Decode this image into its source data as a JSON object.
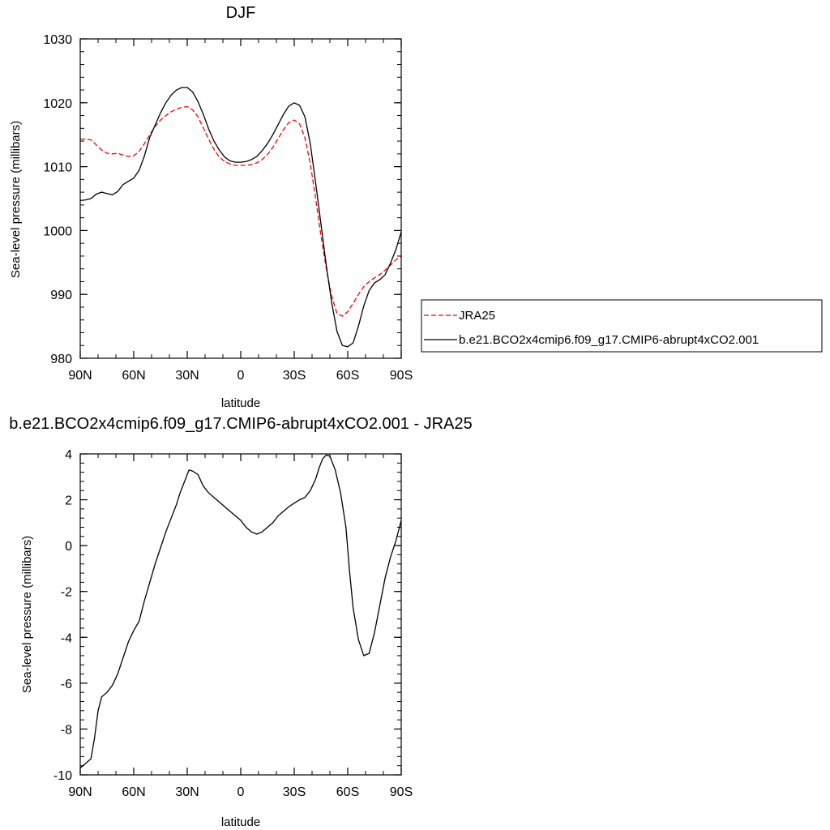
{
  "chart_data": [
    {
      "type": "line",
      "title": "DJF",
      "xlabel": "latitude",
      "ylabel": "Sea-level pressure (millibars)",
      "xlim": [
        90,
        -90
      ],
      "ylim": [
        980,
        1030
      ],
      "xticks": [
        90,
        60,
        30,
        0,
        -30,
        -60,
        -90
      ],
      "xtick_labels": [
        "90N",
        "60N",
        "30N",
        "0",
        "30S",
        "60S",
        "90S"
      ],
      "yticks": [
        980,
        990,
        1000,
        1010,
        1020,
        1030
      ],
      "ytick_labels": [
        "980",
        "990",
        "1000",
        "1010",
        "1020",
        "1030"
      ],
      "legend_position": "right",
      "series": [
        {
          "name": "JRA25",
          "color": "#ff0000",
          "dash": "dashed",
          "x": [
            90,
            87,
            84,
            81,
            78,
            75,
            72,
            69,
            66,
            63,
            60,
            57,
            54,
            51,
            48,
            45,
            42,
            39,
            36,
            33,
            30,
            27,
            24,
            21,
            18,
            15,
            12,
            9,
            6,
            3,
            0,
            -3,
            -6,
            -9,
            -12,
            -15,
            -18,
            -21,
            -24,
            -27,
            -30,
            -33,
            -36,
            -39,
            -42,
            -45,
            -48,
            -51,
            -54,
            -57,
            -60,
            -63,
            -66,
            -69,
            -72,
            -75,
            -78,
            -81,
            -84,
            -87,
            -90
          ],
          "y": [
            1014.3,
            1014.3,
            1014.2,
            1013.4,
            1012.6,
            1012.1,
            1012.0,
            1012.1,
            1011.8,
            1011.6,
            1011.7,
            1012.4,
            1013.6,
            1015.0,
            1016.3,
            1017.3,
            1018.0,
            1018.6,
            1019.0,
            1019.3,
            1019.4,
            1018.9,
            1017.8,
            1016.1,
            1014.3,
            1012.7,
            1011.5,
            1010.8,
            1010.4,
            1010.2,
            1010.2,
            1010.2,
            1010.3,
            1010.6,
            1011.1,
            1011.9,
            1013.0,
            1014.4,
            1015.8,
            1016.9,
            1017.3,
            1016.7,
            1014.5,
            1010.5,
            1005.0,
            999.2,
            994.0,
            989.7,
            987.0,
            986.6,
            987.3,
            988.6,
            990.0,
            991.2,
            992.0,
            992.6,
            993.1,
            993.8,
            994.6,
            995.4,
            996.0
          ]
        },
        {
          "name": "b.e21.BCO2x4cmip6.f09_g17.CMIP6-abrupt4xCO2.001",
          "color": "#000000",
          "dash": "solid",
          "x": [
            90,
            87,
            84,
            81,
            78,
            75,
            72,
            69,
            66,
            63,
            60,
            57,
            54,
            51,
            48,
            45,
            42,
            39,
            36,
            33,
            30,
            27,
            24,
            21,
            18,
            15,
            12,
            9,
            6,
            3,
            0,
            -3,
            -6,
            -9,
            -12,
            -15,
            -18,
            -21,
            -24,
            -27,
            -30,
            -33,
            -36,
            -39,
            -42,
            -45,
            -48,
            -51,
            -54,
            -57,
            -60,
            -63,
            -66,
            -69,
            -72,
            -75,
            -78,
            -81,
            -84,
            -87,
            -90
          ],
          "y": [
            1004.7,
            1004.8,
            1005.0,
            1005.7,
            1006.0,
            1005.8,
            1005.6,
            1006.1,
            1007.2,
            1007.7,
            1008.2,
            1009.4,
            1011.7,
            1014.6,
            1016.5,
            1018.4,
            1020.0,
            1021.2,
            1022.0,
            1022.4,
            1022.4,
            1021.7,
            1020.2,
            1018.2,
            1015.9,
            1014.0,
            1012.6,
            1011.5,
            1010.9,
            1010.7,
            1010.7,
            1010.8,
            1011.1,
            1011.6,
            1012.5,
            1013.6,
            1015.0,
            1016.6,
            1018.2,
            1019.5,
            1020.0,
            1019.6,
            1017.8,
            1013.6,
            1007.5,
            1001.0,
            994.5,
            988.7,
            984.2,
            982.0,
            981.8,
            982.4,
            985.0,
            988.2,
            990.6,
            991.8,
            992.3,
            993.1,
            994.9,
            997.0,
            999.8
          ]
        }
      ]
    },
    {
      "type": "line",
      "title": "b.e21.BCO2x4cmip6.f09_g17.CMIP6-abrupt4xCO2.001 - JRA25",
      "xlabel": "latitude",
      "ylabel": "Sea-level pressure (millibars)",
      "xlim": [
        90,
        -90
      ],
      "ylim": [
        -10,
        4
      ],
      "xticks": [
        90,
        60,
        30,
        0,
        -30,
        -60,
        -90
      ],
      "xtick_labels": [
        "90N",
        "60N",
        "30N",
        "0",
        "30S",
        "60S",
        "90S"
      ],
      "yticks": [
        -10,
        -8,
        -6,
        -4,
        -2,
        0,
        2,
        4
      ],
      "ytick_labels": [
        "-10",
        "-8",
        "-6",
        "-4",
        "-2",
        "0",
        "2",
        "4"
      ],
      "series": [
        {
          "color": "#000000",
          "dash": "solid",
          "x": [
            90,
            87,
            84,
            82,
            80,
            78,
            75,
            72,
            69,
            66,
            63,
            60,
            57,
            54,
            51,
            48,
            45,
            42,
            39,
            36,
            34,
            31,
            29,
            27,
            24,
            21,
            18,
            15,
            12,
            9,
            6,
            3,
            0,
            -3,
            -6,
            -9,
            -12,
            -15,
            -18,
            -21,
            -24,
            -27,
            -30,
            -33,
            -36,
            -39,
            -42,
            -44,
            -46,
            -48,
            -50,
            -53,
            -56,
            -59,
            -61,
            -63,
            -66,
            -69,
            -72,
            -75,
            -78,
            -81,
            -84,
            -87,
            -90
          ],
          "y": [
            -9.7,
            -9.5,
            -9.3,
            -8.4,
            -7.2,
            -6.6,
            -6.4,
            -6.1,
            -5.6,
            -4.9,
            -4.2,
            -3.7,
            -3.3,
            -2.4,
            -1.6,
            -0.8,
            -0.1,
            0.6,
            1.2,
            1.8,
            2.3,
            2.9,
            3.3,
            3.25,
            3.1,
            2.6,
            2.3,
            2.1,
            1.9,
            1.7,
            1.5,
            1.3,
            1.1,
            0.8,
            0.6,
            0.5,
            0.6,
            0.8,
            1.0,
            1.3,
            1.5,
            1.7,
            1.85,
            2.0,
            2.1,
            2.4,
            2.9,
            3.4,
            3.8,
            3.95,
            3.9,
            3.3,
            2.3,
            0.8,
            -1.1,
            -2.7,
            -4.1,
            -4.8,
            -4.7,
            -3.8,
            -2.6,
            -1.4,
            -0.5,
            0.2,
            1.1
          ]
        }
      ]
    }
  ]
}
